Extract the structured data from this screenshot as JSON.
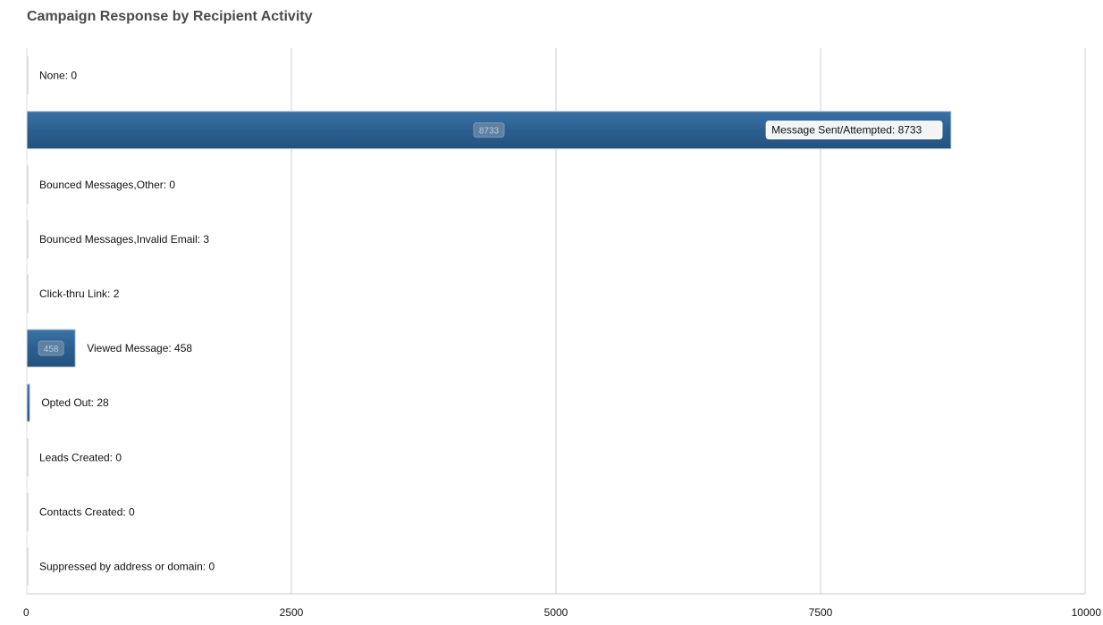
{
  "chart_data": {
    "type": "bar",
    "orientation": "horizontal",
    "title": "Campaign Response by Recipient Activity",
    "xlabel": "",
    "ylabel": "",
    "xlim": [
      0,
      10000
    ],
    "x_ticks": [
      "0",
      "2500",
      "5000",
      "7500",
      "10000"
    ],
    "grid": true,
    "bar_color": "#2b5f90",
    "categories": [
      "None: 0",
      "Message Sent/Attempted: 8733",
      "Bounced Messages,Other: 0",
      "Bounced Messages,Invalid Email: 3",
      "Click-thru Link: 2",
      "Viewed Message: 458",
      "Opted Out: 28",
      "Leads Created: 0",
      "Contacts Created: 0",
      "Suppressed by address or domain: 0"
    ],
    "values": [
      0,
      8733,
      0,
      3,
      2,
      458,
      28,
      0,
      0,
      0
    ],
    "value_tags": [
      "",
      "8733",
      "",
      "",
      "",
      "458",
      "",
      "",
      "",
      ""
    ]
  }
}
